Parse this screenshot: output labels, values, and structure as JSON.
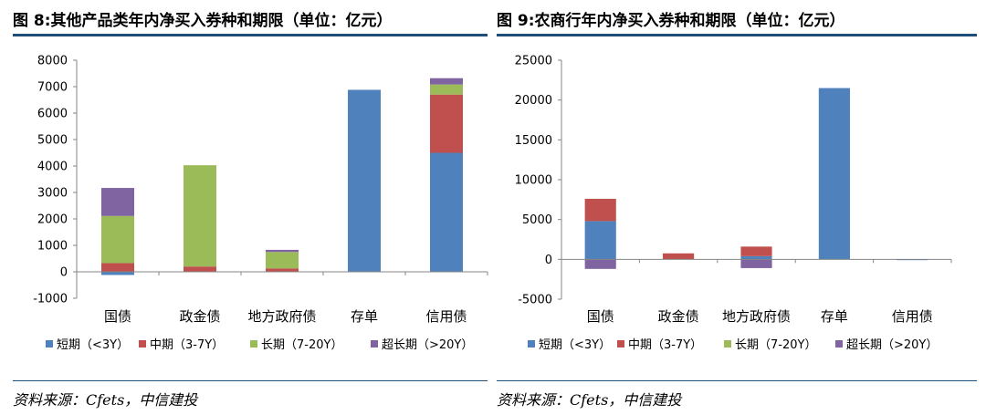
{
  "panels": [
    {
      "title": "图 8:其他产品类年内净买入券种和期限（单位：亿元）",
      "source": "资料来源：Cfets，中信建投",
      "chart_data": {
        "type": "bar",
        "stacked": true,
        "categories": [
          "国债",
          "政金债",
          "地方政府债",
          "存单",
          "信用债"
        ],
        "series": [
          {
            "name": "短期（<3Y）",
            "color": "#4f81bd",
            "values": [
              -120,
              0,
              0,
              6880,
              4500
            ]
          },
          {
            "name": "中期（3-7Y）",
            "color": "#c0504d",
            "values": [
              330,
              200,
              130,
              0,
              2200
            ]
          },
          {
            "name": "长期（7-20Y）",
            "color": "#9bbb59",
            "values": [
              1780,
              3830,
              620,
              0,
              380
            ]
          },
          {
            "name": "超长期（>20Y）",
            "color": "#8064a2",
            "values": [
              1060,
              0,
              80,
              0,
              240
            ]
          }
        ],
        "ylim": [
          -1000,
          8000
        ],
        "yticks": [
          -1000,
          0,
          1000,
          2000,
          3000,
          4000,
          5000,
          6000,
          7000,
          8000
        ],
        "grid": false,
        "legend": "bottom"
      }
    },
    {
      "title": "图 9:农商行年内净买入券种和期限（单位：亿元）",
      "source": "资料来源：Cfets，中信建投",
      "chart_data": {
        "type": "bar",
        "stacked": true,
        "categories": [
          "国债",
          "政金债",
          "地方政府债",
          "存单",
          "信用债"
        ],
        "series": [
          {
            "name": "短期（<3Y）",
            "color": "#4f81bd",
            "values": [
              4800,
              0,
              400,
              21500,
              -100
            ]
          },
          {
            "name": "中期（3-7Y）",
            "color": "#c0504d",
            "values": [
              2800,
              750,
              1200,
              0,
              0
            ]
          },
          {
            "name": "长期（7-20Y）",
            "color": "#9bbb59",
            "values": [
              0,
              0,
              0,
              0,
              0
            ]
          },
          {
            "name": "超长期（>20Y）",
            "color": "#8064a2",
            "values": [
              -1200,
              0,
              -1100,
              0,
              0
            ]
          }
        ],
        "ylim": [
          -5000,
          25000
        ],
        "yticks": [
          -5000,
          0,
          5000,
          10000,
          15000,
          20000,
          25000
        ],
        "grid": false,
        "legend": "bottom"
      }
    }
  ]
}
